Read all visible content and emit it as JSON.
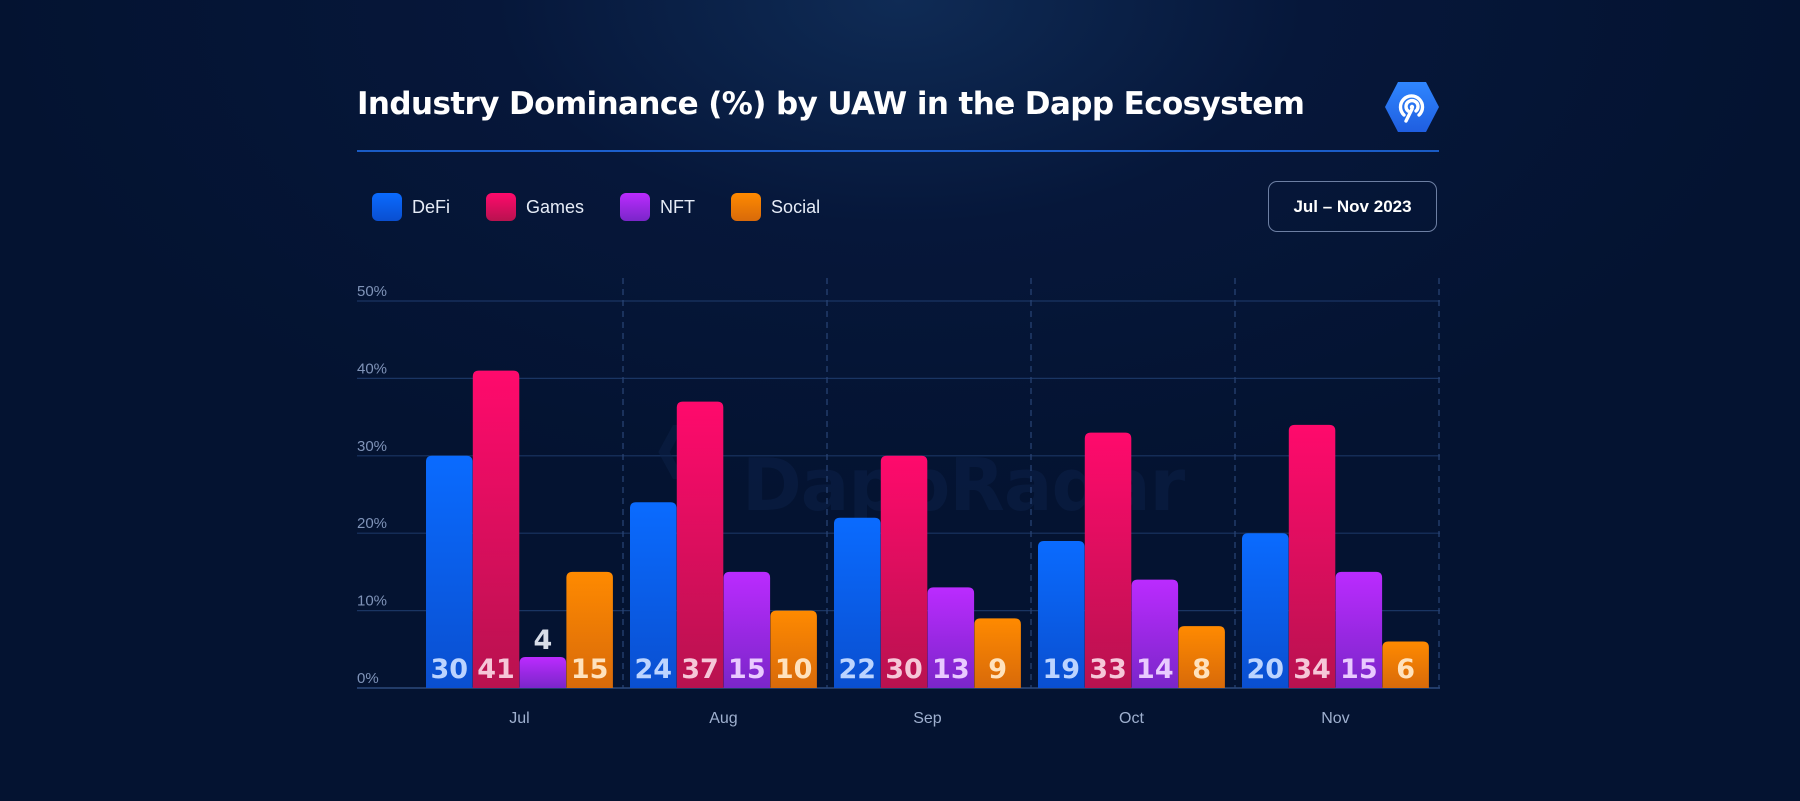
{
  "header": {
    "title": "Industry Dominance (%) by UAW in the Dapp Ecosystem",
    "logo_icon": "dappradar-hexagon-icon",
    "date_range": "Jul – Nov 2023"
  },
  "watermark": {
    "text": "DappRadar"
  },
  "colors": {
    "DefiTop": "#0a6bff",
    "DefiBottom": "#0a4fd0",
    "GamesTop": "#ff0a6c",
    "GamesBottom": "#b8124f",
    "NftTop": "#bb2bff",
    "NftBottom": "#7a26c9",
    "SocialTop": "#ff8a00",
    "SocialBottom": "#d86a0a"
  },
  "chart_data": {
    "type": "bar",
    "title": "Industry Dominance (%) by UAW in the Dapp Ecosystem",
    "xlabel": "",
    "ylabel": "",
    "ylim": [
      0,
      50
    ],
    "yticks": [
      "0%",
      "10%",
      "20%",
      "30%",
      "40%",
      "50%"
    ],
    "grid": true,
    "legend_position": "top-left",
    "categories": [
      "Jul",
      "Aug",
      "Sep",
      "Oct",
      "Nov"
    ],
    "series": [
      {
        "name": "DeFi",
        "values": [
          30,
          24,
          22,
          19,
          20
        ]
      },
      {
        "name": "Games",
        "values": [
          41,
          37,
          30,
          33,
          34
        ]
      },
      {
        "name": "NFT",
        "values": [
          4,
          15,
          13,
          14,
          15
        ]
      },
      {
        "name": "Social",
        "values": [
          15,
          10,
          9,
          8,
          6
        ]
      }
    ]
  }
}
